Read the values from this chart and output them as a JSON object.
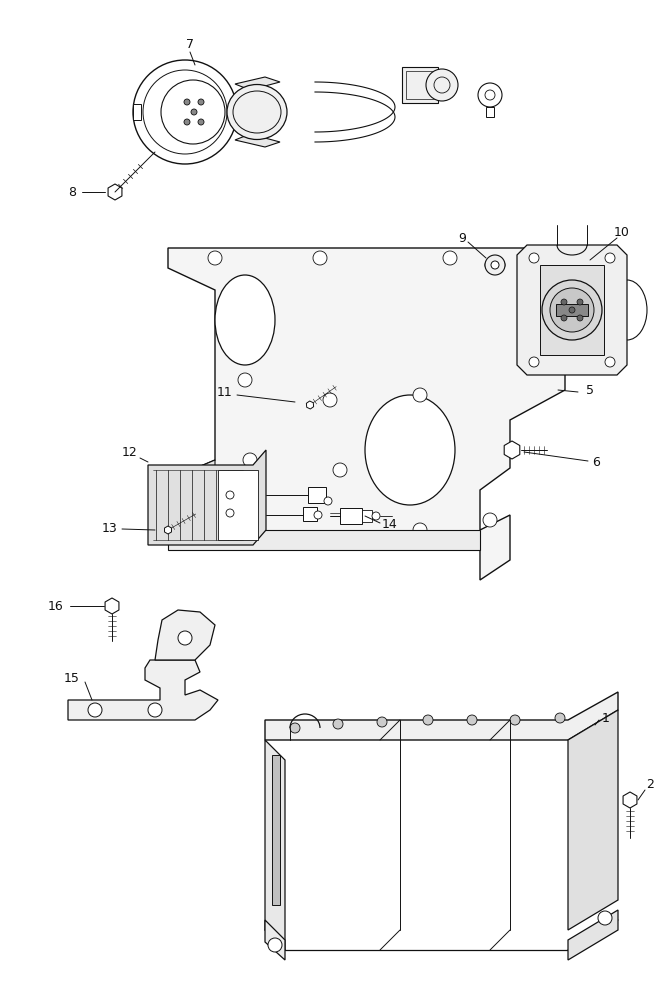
{
  "bg_color": "#ffffff",
  "line_color": "#111111",
  "fig_width": 6.68,
  "fig_height": 10.0,
  "dpi": 100
}
